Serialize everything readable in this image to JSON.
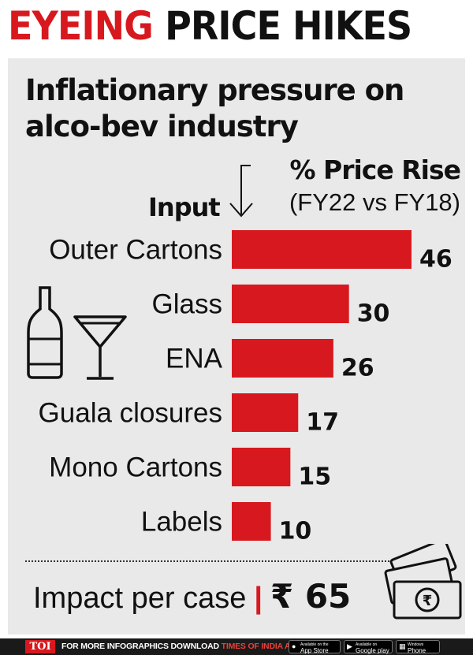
{
  "headline": {
    "part1": "EYEING",
    "part2": "PRICE HIKES"
  },
  "subtitle": {
    "line1": "Inflationary pressure on",
    "line2": "alco-bev industry"
  },
  "columns": {
    "input": "Input",
    "rise_line1": "% Price Rise",
    "rise_line2": "(FY22 vs FY18)"
  },
  "chart_data": {
    "type": "bar",
    "orientation": "horizontal",
    "categories": [
      "Outer Cartons",
      "Glass",
      "ENA",
      "Guala closures",
      "Mono Cartons",
      "Labels"
    ],
    "values": [
      46,
      30,
      26,
      17,
      15,
      10
    ],
    "value_labels": [
      "46",
      "30",
      "26",
      "17",
      "15",
      "10"
    ],
    "title": "",
    "xlabel": "% Price Rise (FY22 vs FY18)",
    "ylabel": "Input",
    "bar_color": "#d7191f",
    "grid": false,
    "legend": "none"
  },
  "impact": {
    "label": "Impact per case",
    "separator": "|",
    "amount": "₹ 65"
  },
  "footer": {
    "logo": "TOI",
    "text_prefix": "FOR MORE  INFOGRAPHICS DOWNLOAD ",
    "brand": "TIMES OF INDIA APP",
    "badges": [
      {
        "small": "Available on the",
        "label": "App Store",
        "icon": "apple-icon"
      },
      {
        "small": "Available on",
        "label": "Google play",
        "icon": "play-icon"
      },
      {
        "small": "Windows",
        "label": "Phone",
        "icon": "windows-icon"
      }
    ]
  },
  "colors": {
    "accent": "#d7191f",
    "panel": "#e9e9e9",
    "text": "#111111"
  }
}
